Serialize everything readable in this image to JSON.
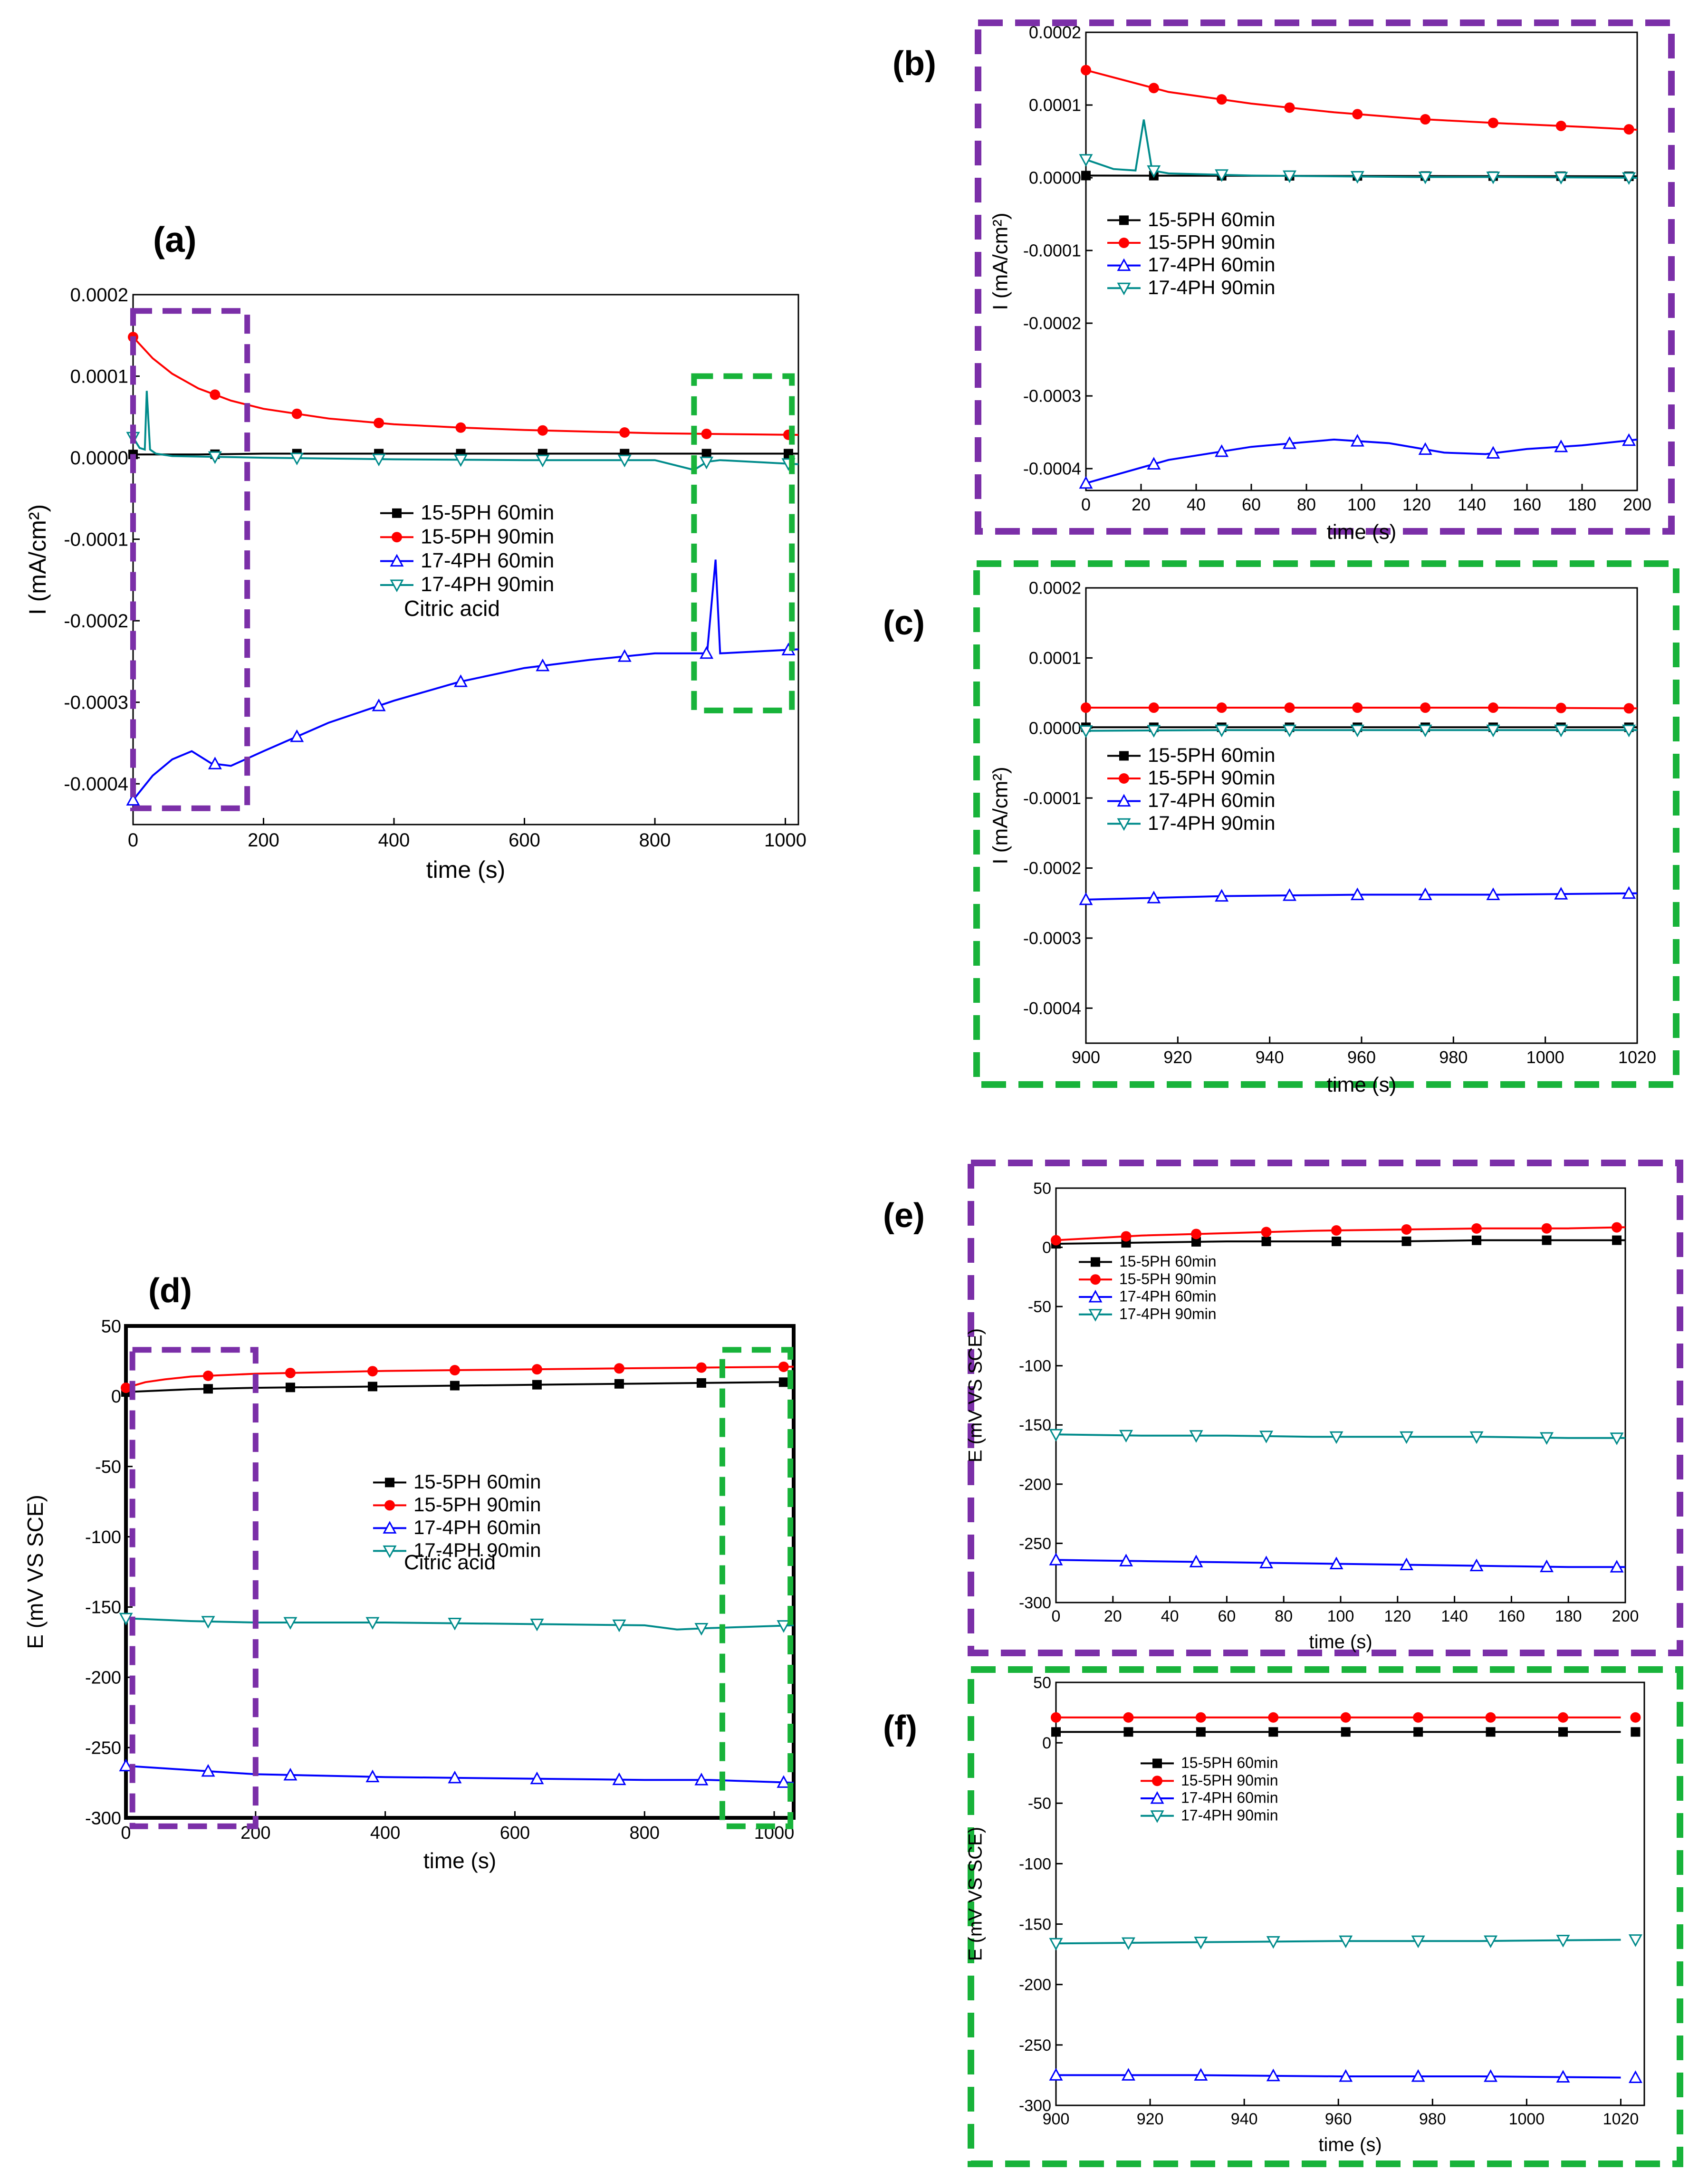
{
  "figure": {
    "series_names": [
      "15-5PH 60min",
      "15-5PH 90min",
      "17-4PH 60min",
      "17-4PH 90min"
    ],
    "series_colors": [
      "#000000",
      "#ff0000",
      "#0000ff",
      "#008b8b"
    ],
    "series_markers": [
      "square",
      "circle",
      "triangle-up",
      "triangle-down"
    ],
    "zoom_box_colors": {
      "start": "#7b2fa8",
      "end": "#18b33a"
    },
    "annotation_text": "Citric acid"
  },
  "chart_data": [
    {
      "id": "a",
      "panel_label": "(a)",
      "type": "line",
      "xlabel": "time (s)",
      "ylabel": "I (mA/cm²)",
      "xlim": [
        0,
        1020
      ],
      "ylim": [
        -0.00045,
        0.0002
      ],
      "xticks": [
        0,
        200,
        400,
        600,
        800,
        1000
      ],
      "xtick_labels": [
        "0",
        "200",
        "400",
        "600",
        "800",
        "1000"
      ],
      "yticks": [
        0.0002,
        0.0001,
        0,
        -0.0001,
        -0.0002,
        -0.0003,
        -0.0004
      ],
      "ytick_labels": [
        "0.0002",
        "0.0001",
        "0.0000",
        "-0.0001",
        "-0.0002",
        "-0.0003",
        "-0.0004"
      ],
      "legend": "center",
      "annotation": "Citric acid",
      "zoom_boxes": [
        {
          "color": "start",
          "x": [
            0,
            175
          ],
          "y": [
            -0.00043,
            0.00018
          ]
        },
        {
          "color": "end",
          "x": [
            860,
            1010
          ],
          "y": [
            -0.00031,
            0.0001
          ]
        }
      ],
      "series": [
        {
          "name": "15-5PH 60min",
          "x": [
            0,
            100,
            200,
            400,
            600,
            800,
            1020
          ],
          "y": [
            4e-06,
            4e-06,
            5e-06,
            5e-06,
            5e-06,
            5e-06,
            5e-06
          ]
        },
        {
          "name": "15-5PH 90min",
          "x": [
            0,
            30,
            60,
            100,
            150,
            200,
            300,
            400,
            500,
            600,
            700,
            800,
            900,
            1020
          ],
          "y": [
            0.000148,
            0.000122,
            0.000103,
            8.5e-05,
            7e-05,
            6e-05,
            4.8e-05,
            4.1e-05,
            3.7e-05,
            3.4e-05,
            3.2e-05,
            3e-05,
            2.9e-05,
            2.8e-05
          ]
        },
        {
          "name": "17-4PH 60min",
          "x": [
            0,
            10,
            30,
            60,
            90,
            120,
            150,
            200,
            300,
            400,
            500,
            600,
            700,
            800,
            880,
            893,
            900,
            950,
            1020
          ],
          "y": [
            -0.00042,
            -0.00041,
            -0.00039,
            -0.00037,
            -0.00036,
            -0.000375,
            -0.000378,
            -0.00036,
            -0.000325,
            -0.000298,
            -0.000275,
            -0.000258,
            -0.000248,
            -0.00024,
            -0.00024,
            -0.000125,
            -0.00024,
            -0.000238,
            -0.000235
          ]
        },
        {
          "name": "17-4PH 90min",
          "x": [
            0,
            10,
            18,
            21,
            26,
            35,
            60,
            200,
            400,
            600,
            800,
            860,
            880,
            900,
            1020
          ],
          "y": [
            2.5e-05,
            1.2e-05,
            1e-05,
            8.2e-05,
            1e-05,
            5e-06,
            2e-06,
            0.0,
            -2e-06,
            -3e-06,
            -3e-06,
            -1.5e-05,
            -5e-06,
            -3e-06,
            -8e-06
          ]
        }
      ]
    },
    {
      "id": "b",
      "panel_label": "(b)",
      "type": "line",
      "xlabel": "time (s)",
      "ylabel": "I (mA/cm²)",
      "xlim": [
        0,
        200
      ],
      "ylim": [
        -0.00043,
        0.0002
      ],
      "xticks": [
        0,
        20,
        40,
        60,
        80,
        100,
        120,
        140,
        160,
        180,
        200
      ],
      "xtick_labels": [
        "0",
        "20",
        "40",
        "60",
        "80",
        "100",
        "120",
        "140",
        "160",
        "180",
        "200"
      ],
      "yticks": [
        0.0002,
        0.0001,
        0,
        -0.0001,
        -0.0002,
        -0.0003,
        -0.0004
      ],
      "ytick_labels": [
        "0.0002",
        "0.0001",
        "0.0000",
        "-0.0001",
        "-0.0002",
        "-0.0003",
        "-0.0004"
      ],
      "legend": "upper-left",
      "series": [
        {
          "name": "15-5PH 60min",
          "x": [
            0,
            200
          ],
          "y": [
            3e-06,
            2e-06
          ]
        },
        {
          "name": "15-5PH 90min",
          "x": [
            0,
            30,
            60,
            90,
            120,
            150,
            180,
            200
          ],
          "y": [
            0.000148,
            0.000118,
            0.000102,
            9e-05,
            8.1e-05,
            7.5e-05,
            7e-05,
            6.6e-05
          ]
        },
        {
          "name": "17-4PH 60min",
          "x": [
            0,
            30,
            60,
            90,
            110,
            130,
            145,
            160,
            180,
            200
          ],
          "y": [
            -0.00042,
            -0.000388,
            -0.00037,
            -0.00036,
            -0.000365,
            -0.000378,
            -0.00038,
            -0.000373,
            -0.000368,
            -0.00036
          ]
        },
        {
          "name": "17-4PH 90min",
          "x": [
            0,
            10,
            18,
            21,
            24,
            30,
            60,
            90,
            120,
            150,
            200
          ],
          "y": [
            2.5e-05,
            1.2e-05,
            1e-05,
            8e-05,
            1e-05,
            6e-06,
            3e-06,
            2e-06,
            1e-06,
            1e-06,
            0.0
          ]
        }
      ]
    },
    {
      "id": "c",
      "panel_label": "(c)",
      "type": "line",
      "xlabel": "time (s)",
      "ylabel": "I (mA/cm²)",
      "xlim": [
        900,
        1020
      ],
      "ylim": [
        -0.00045,
        0.0002
      ],
      "xticks": [
        900,
        920,
        940,
        960,
        980,
        1000,
        1020
      ],
      "xtick_labels": [
        "900",
        "920",
        "940",
        "960",
        "980",
        "1000",
        "1020"
      ],
      "yticks": [
        0.0002,
        0.0001,
        0,
        -0.0001,
        -0.0002,
        -0.0003,
        -0.0004
      ],
      "ytick_labels": [
        "0.0002",
        "0.0001",
        "0.0000",
        "-0.0001",
        "-0.0002",
        "-0.0003",
        "-0.0004"
      ],
      "legend": "left",
      "series": [
        {
          "name": "15-5PH 60min",
          "x": [
            900,
            930,
            960,
            990,
            1020
          ],
          "y": [
            1e-06,
            1e-06,
            1e-06,
            1e-06,
            1e-06
          ]
        },
        {
          "name": "15-5PH 90min",
          "x": [
            900,
            930,
            960,
            990,
            1020
          ],
          "y": [
            2.9e-05,
            2.9e-05,
            2.9e-05,
            2.9e-05,
            2.8e-05
          ]
        },
        {
          "name": "17-4PH 60min",
          "x": [
            900,
            930,
            960,
            990,
            1020
          ],
          "y": [
            -0.000245,
            -0.00024,
            -0.000238,
            -0.000238,
            -0.000236
          ]
        },
        {
          "name": "17-4PH 90min",
          "x": [
            900,
            930,
            960,
            990,
            1020
          ],
          "y": [
            -4e-06,
            -3e-06,
            -3e-06,
            -3e-06,
            -3e-06
          ]
        }
      ]
    },
    {
      "id": "d",
      "panel_label": "(d)",
      "type": "line",
      "xlabel": "time (s)",
      "ylabel": "E (mV VS SCE)",
      "xlim": [
        0,
        1030
      ],
      "ylim": [
        -300,
        50
      ],
      "xticks": [
        0,
        200,
        400,
        600,
        800,
        1000
      ],
      "xtick_labels": [
        "0",
        "200",
        "400",
        "600",
        "800",
        "1000"
      ],
      "yticks": [
        50,
        0,
        -50,
        -100,
        -150,
        -200,
        -250,
        -300
      ],
      "ytick_labels": [
        "50",
        "0",
        "-50",
        "-100",
        "-150",
        "-200",
        "-250",
        "-300"
      ],
      "legend": "center",
      "annotation": "Citric acid",
      "zoom_boxes": [
        {
          "color": "start",
          "x": [
            10,
            200
          ],
          "y": [
            -306,
            33
          ]
        },
        {
          "color": "end",
          "x": [
            920,
            1025
          ],
          "y": [
            -306,
            33
          ]
        }
      ],
      "series": [
        {
          "name": "15-5PH 60min",
          "x": [
            0,
            100,
            200,
            400,
            600,
            800,
            1000,
            1030
          ],
          "y": [
            3,
            5,
            6,
            7,
            8,
            9,
            10,
            10
          ]
        },
        {
          "name": "15-5PH 90min",
          "x": [
            0,
            30,
            60,
            100,
            200,
            400,
            600,
            800,
            1030
          ],
          "y": [
            6,
            10,
            12,
            14,
            16,
            18,
            19,
            20,
            21
          ]
        },
        {
          "name": "17-4PH 60min",
          "x": [
            0,
            100,
            200,
            400,
            600,
            800,
            900,
            1030
          ],
          "y": [
            -263,
            -266,
            -269,
            -271,
            -272,
            -273,
            -273,
            -275
          ]
        },
        {
          "name": "17-4PH 90min",
          "x": [
            0,
            100,
            200,
            400,
            600,
            800,
            850,
            900,
            1030
          ],
          "y": [
            -158,
            -160,
            -161,
            -161,
            -162,
            -163,
            -166,
            -165,
            -163
          ]
        }
      ]
    },
    {
      "id": "e",
      "panel_label": "(e)",
      "type": "line",
      "xlabel": "time (s)",
      "ylabel": "E (mV VS SCE)",
      "xlim": [
        0,
        200
      ],
      "ylim": [
        -300,
        50
      ],
      "xticks": [
        0,
        20,
        40,
        60,
        80,
        100,
        120,
        140,
        160,
        180,
        200
      ],
      "xtick_labels": [
        "0",
        "20",
        "40",
        "60",
        "80",
        "100",
        "120",
        "140",
        "160",
        "180",
        "200"
      ],
      "yticks": [
        50,
        0,
        -50,
        -100,
        -150,
        -200,
        -250,
        -300
      ],
      "ytick_labels": [
        "50",
        "0",
        "-50",
        "-100",
        "-150",
        "-200",
        "-250",
        "-300"
      ],
      "legend": "upper-left",
      "series": [
        {
          "name": "15-5PH 60min",
          "x": [
            0,
            30,
            60,
            90,
            120,
            150,
            180,
            200
          ],
          "y": [
            3,
            4,
            5,
            5,
            5,
            6,
            6,
            6
          ]
        },
        {
          "name": "15-5PH 90min",
          "x": [
            0,
            30,
            60,
            90,
            120,
            150,
            180,
            200
          ],
          "y": [
            6,
            10,
            12,
            14,
            15,
            16,
            16,
            17
          ]
        },
        {
          "name": "17-4PH 60min",
          "x": [
            0,
            30,
            60,
            90,
            120,
            150,
            180,
            200
          ],
          "y": [
            -264,
            -265,
            -266,
            -267,
            -268,
            -269,
            -270,
            -270
          ]
        },
        {
          "name": "17-4PH 90min",
          "x": [
            0,
            30,
            60,
            90,
            120,
            150,
            180,
            200
          ],
          "y": [
            -158,
            -159,
            -159,
            -160,
            -160,
            -160,
            -161,
            -161
          ]
        }
      ]
    },
    {
      "id": "f",
      "panel_label": "(f)",
      "type": "line",
      "xlabel": "time (s)",
      "ylabel": "E (mV VS SCE)",
      "xlim": [
        900,
        1025
      ],
      "ylim": [
        -300,
        50
      ],
      "xticks": [
        900,
        920,
        940,
        960,
        980,
        1000,
        1020
      ],
      "xtick_labels": [
        "900",
        "920",
        "940",
        "960",
        "980",
        "1000",
        "1020"
      ],
      "yticks": [
        50,
        0,
        -50,
        -100,
        -150,
        -200,
        -250,
        -300
      ],
      "ytick_labels": [
        "50",
        "0",
        "-50",
        "-100",
        "-150",
        "-200",
        "-250",
        "-300"
      ],
      "legend": "upper-left",
      "series": [
        {
          "name": "15-5PH 60min",
          "x": [
            900,
            930,
            960,
            990,
            1020
          ],
          "y": [
            9,
            9,
            9,
            9,
            9
          ]
        },
        {
          "name": "15-5PH 90min",
          "x": [
            900,
            930,
            960,
            990,
            1020
          ],
          "y": [
            21,
            21,
            21,
            21,
            21
          ]
        },
        {
          "name": "17-4PH 60min",
          "x": [
            900,
            930,
            960,
            990,
            1020
          ],
          "y": [
            -275,
            -275,
            -276,
            -276,
            -277
          ]
        },
        {
          "name": "17-4PH 90min",
          "x": [
            900,
            930,
            960,
            990,
            1020
          ],
          "y": [
            -166,
            -165,
            -164,
            -164,
            -163
          ]
        }
      ]
    }
  ]
}
